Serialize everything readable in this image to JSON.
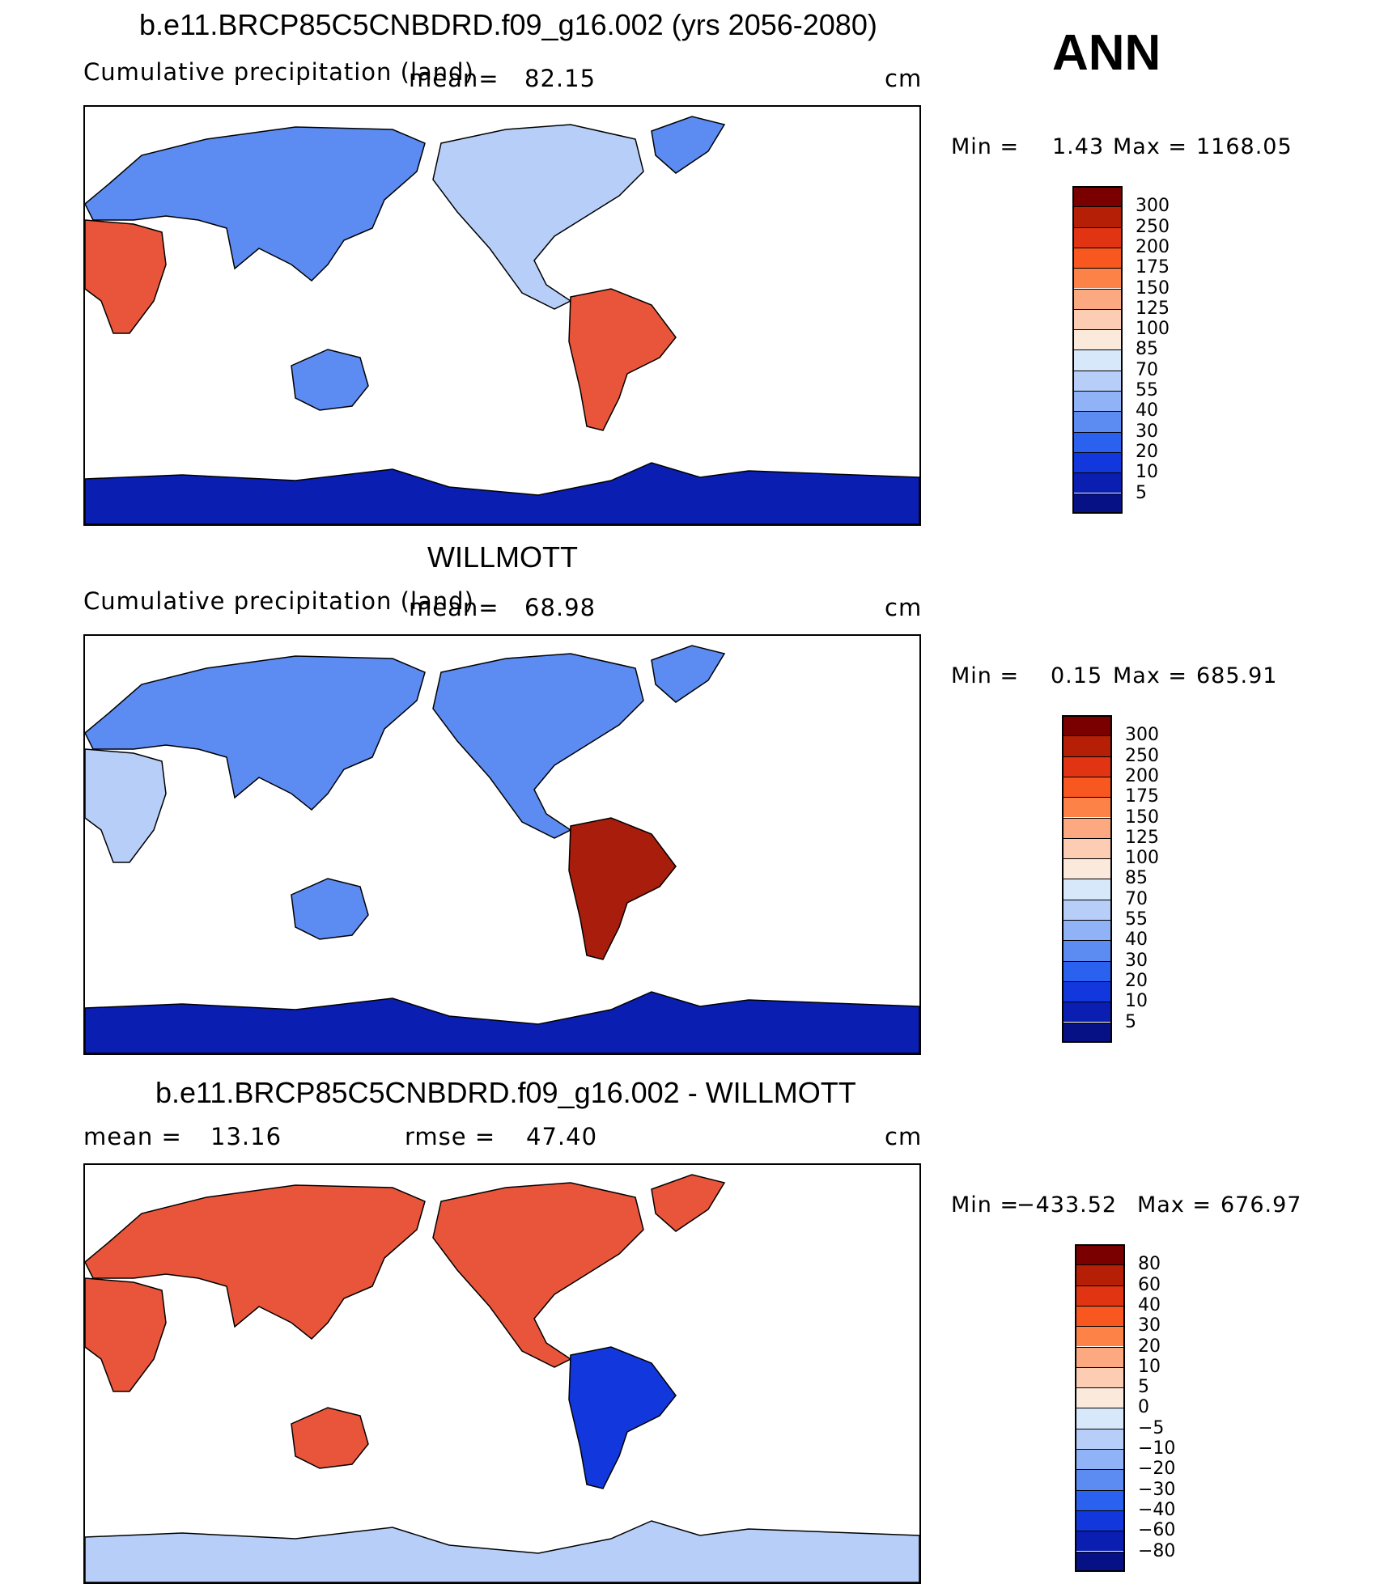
{
  "season": "ANN",
  "units": "cm",
  "panels": [
    {
      "title": "b.e11.BRCP85C5CNBDRD.f09_g16.002 (yrs 2056-2080)",
      "left_label": "Cumulative precipitation (land)",
      "mean_label": "mean=",
      "mean_value": "82.15",
      "units": "cm",
      "min_label": "Min =",
      "min_value": "1.43",
      "max_label": "Max =",
      "max_value": "1168.05",
      "colorbar_ticks": [
        "300",
        "250",
        "200",
        "175",
        "150",
        "125",
        "100",
        "85",
        "70",
        "55",
        "40",
        "30",
        "20",
        "10",
        "5"
      ],
      "colorbar_colors": [
        "#7a0000",
        "#b51f05",
        "#e03412",
        "#f8571f",
        "#fd8248",
        "#fca880",
        "#fccdb3",
        "#fbe9dc",
        "#d7e8fa",
        "#b7cff8",
        "#90b2f6",
        "#5c8bf2",
        "#2a61ee",
        "#1238dd",
        "#0a1eb2",
        "#061186"
      ],
      "regions": {
        "north_america": "mixed",
        "south_america": "wet",
        "africa": "wet",
        "eurasia": "dry",
        "australia": "dry",
        "antarctica": "very_dry",
        "greenland": "dry"
      }
    },
    {
      "title": "WILLMOTT",
      "left_label": "Cumulative precipitation (land)",
      "mean_label": "mean=",
      "mean_value": "68.98",
      "units": "cm",
      "min_label": "Min =",
      "min_value": "0.15",
      "max_label": "Max =",
      "max_value": "685.91",
      "colorbar_ticks": [
        "300",
        "250",
        "200",
        "175",
        "150",
        "125",
        "100",
        "85",
        "70",
        "55",
        "40",
        "30",
        "20",
        "10",
        "5"
      ],
      "colorbar_colors": [
        "#7a0000",
        "#b51f05",
        "#e03412",
        "#f8571f",
        "#fd8248",
        "#fca880",
        "#fccdb3",
        "#fbe9dc",
        "#d7e8fa",
        "#b7cff8",
        "#90b2f6",
        "#5c8bf2",
        "#2a61ee",
        "#1238dd",
        "#0a1eb2",
        "#061186"
      ],
      "regions": {
        "north_america": "dry",
        "south_america": "very_wet",
        "africa": "mixed",
        "eurasia": "dry",
        "australia": "dry",
        "antarctica": "very_dry",
        "greenland": "dry"
      }
    },
    {
      "title": "b.e11.BRCP85C5CNBDRD.f09_g16.002 - WILLMOTT",
      "mean_label": "mean =",
      "mean_value": "13.16",
      "rmse_label": "rmse =",
      "rmse_value": "47.40",
      "units": "cm",
      "min_label": "Min =",
      "min_value": "−433.52",
      "max_label": "Max =",
      "max_value": "676.97",
      "colorbar_ticks": [
        "80",
        "60",
        "40",
        "30",
        "20",
        "10",
        "5",
        "0",
        "−5",
        "−10",
        "−20",
        "−30",
        "−40",
        "−60",
        "−80"
      ],
      "colorbar_colors": [
        "#7a0000",
        "#b51f05",
        "#e03412",
        "#f8571f",
        "#fd8248",
        "#fca880",
        "#fccdb3",
        "#fbe9dc",
        "#d7e8fa",
        "#b7cff8",
        "#90b2f6",
        "#5c8bf2",
        "#2a61ee",
        "#1238dd",
        "#0a1eb2",
        "#061186"
      ],
      "regions": {
        "north_america": "positive",
        "south_america": "negative",
        "africa": "positive",
        "eurasia": "positive",
        "australia": "positive",
        "antarctica": "mixed",
        "greenland": "positive"
      }
    }
  ]
}
